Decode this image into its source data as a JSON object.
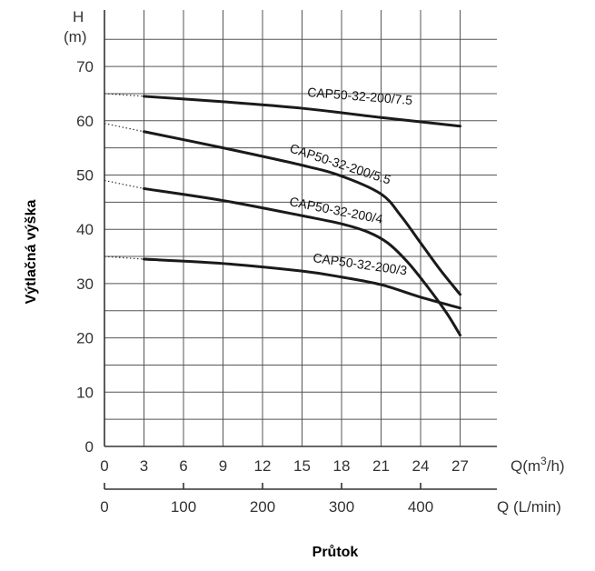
{
  "chart_data": {
    "type": "line",
    "y_title": "H",
    "y_unit": "(m)",
    "ylabel": "Výtlačná výška",
    "xlabel": "Průtok",
    "x_unit": "Q(m³/h)",
    "x_unit_base": "Q(m",
    "x_unit_sup": "3",
    "x_unit_tail": "/h)",
    "x2_unit": "Q (L/min)",
    "ylim": [
      0,
      75
    ],
    "xlim": [
      0,
      28
    ],
    "y_ticks": [
      "0",
      "10",
      "20",
      "30",
      "40",
      "50",
      "60",
      "70"
    ],
    "x_ticks": [
      "0",
      "3",
      "6",
      "9",
      "12",
      "15",
      "18",
      "21",
      "24",
      "27"
    ],
    "x2_ticks": [
      "0",
      "100",
      "200",
      "300",
      "400"
    ],
    "x2_tick_values": [
      0,
      100,
      200,
      300,
      400
    ],
    "grid": true,
    "series": [
      {
        "name": "CAP50-32-200/7.5",
        "x": [
          3,
          9,
          15,
          21,
          27
        ],
        "y": [
          64.5,
          63.5,
          62.3,
          60.6,
          59
        ],
        "shutoff_head": 65
      },
      {
        "name": "CAP50-32-200/5.5",
        "x": [
          3,
          9,
          15,
          18,
          21,
          22.5,
          24,
          25.5,
          27
        ],
        "y": [
          58,
          55,
          51.8,
          49.8,
          46.5,
          42.5,
          37.5,
          32.5,
          28
        ],
        "shutoff_head": 59.5
      },
      {
        "name": "CAP50-32-200/4",
        "x": [
          3,
          9,
          15,
          18,
          20,
          21.5,
          23,
          24.5,
          26,
          27
        ],
        "y": [
          47.5,
          45.3,
          42.5,
          41,
          39.5,
          37.5,
          34,
          29.5,
          24.5,
          20.5
        ],
        "shutoff_head": 49
      },
      {
        "name": "CAP50-32-200/3",
        "x": [
          3,
          9,
          15,
          18,
          21,
          24,
          27
        ],
        "y": [
          34.5,
          33.7,
          32.3,
          31.2,
          29.8,
          27.5,
          25.5
        ],
        "shutoff_head": 35
      }
    ]
  }
}
